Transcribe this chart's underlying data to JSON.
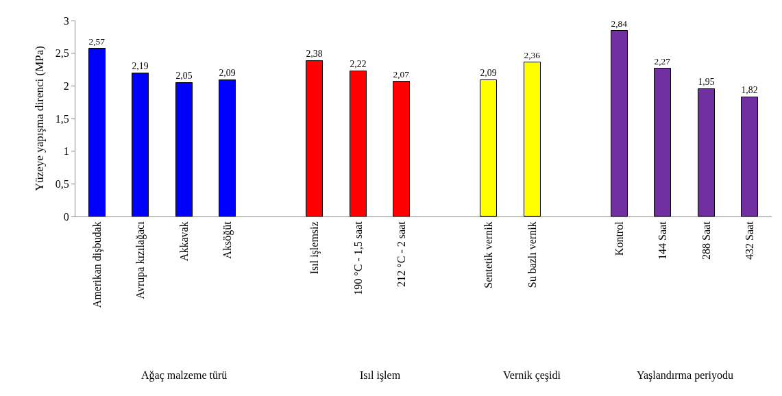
{
  "chart_data": {
    "type": "bar",
    "ylabel": "Yüzeye yapışma direnci (MPa)",
    "categories": [
      "Amerikan dişbudak",
      "Avrupa kızılağacı",
      "Akkavak",
      "Aksöğüt",
      null,
      "Isıl işlemsiz",
      "190 °C - 1,5 saat",
      "212 °C - 2 saat",
      null,
      "Sentetik vernik",
      "Su bazlı vernik",
      null,
      "Kontrol",
      "144 Saat",
      "288 Saat",
      "432 Saat"
    ],
    "values": [
      2.57,
      2.19,
      2.05,
      2.09,
      null,
      2.38,
      2.22,
      2.07,
      null,
      2.09,
      2.36,
      null,
      2.84,
      2.27,
      1.95,
      1.82
    ],
    "colors": [
      "#0000ff",
      "#0000ff",
      "#0000ff",
      "#0000ff",
      null,
      "#ff0000",
      "#ff0000",
      "#ff0000",
      null,
      "#ffff00",
      "#ffff00",
      null,
      "#7030a0",
      "#7030a0",
      "#7030a0",
      "#7030a0"
    ],
    "value_labels": [
      "2,57",
      "2,19",
      "2,05",
      "2,09",
      null,
      "2,38",
      "2,22",
      "2,07",
      null,
      "2,09",
      "2,36",
      null,
      "2,84",
      "2,27",
      "1,95",
      "1,82"
    ],
    "ylim": [
      0,
      3
    ],
    "yticks": [
      0,
      {
        "value": 0.5,
        "label": "0,5"
      },
      1,
      {
        "value": 1.5,
        "label": "1,5"
      },
      2,
      {
        "value": 2.5,
        "label": "2,5"
      },
      3
    ],
    "annotations": [
      "Ağaç malzeme türü",
      "Isıl işlem",
      "Vernik çeşidi",
      "Yaşlandırma periyodu"
    ],
    "grid": false
  }
}
